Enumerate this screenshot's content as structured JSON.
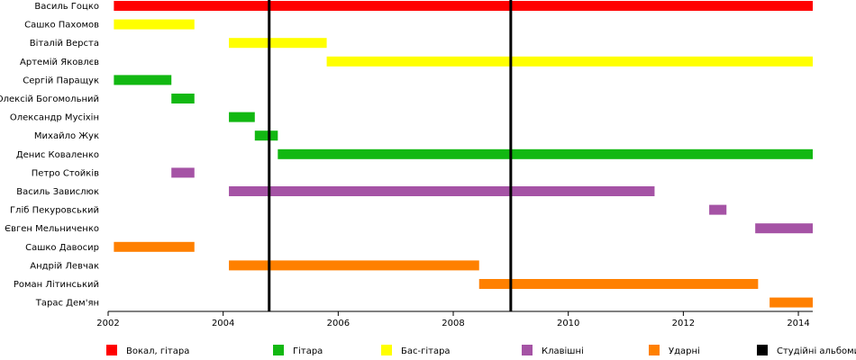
{
  "chart_data": {
    "type": "timeline",
    "title": "",
    "xlabel": "",
    "ylabel": "",
    "xlim": [
      2002.0,
      2014.25
    ],
    "x_ticks": [
      "2002",
      "2004",
      "2006",
      "2008",
      "2010",
      "2012",
      "2014"
    ],
    "x_tick_values": [
      2002,
      2004,
      2006,
      2008,
      2010,
      2012,
      2014
    ],
    "colors": {
      "vocal_guitar": "#ff0000",
      "guitar": "#12b812",
      "bass": "#ffff00",
      "keys": "#a553a5",
      "drums": "#ff8000",
      "album": "#000000"
    },
    "members": [
      {
        "name": "Василь Гоцко",
        "periods": [
          {
            "role": "vocal_guitar",
            "start": 2002.1,
            "end": 2014.25
          }
        ]
      },
      {
        "name": "Сашко Пахомов",
        "periods": [
          {
            "role": "bass",
            "start": 2002.1,
            "end": 2003.5
          }
        ]
      },
      {
        "name": "Віталій Верста",
        "periods": [
          {
            "role": "bass",
            "start": 2004.1,
            "end": 2005.8
          }
        ]
      },
      {
        "name": "Артемій Яковлєв",
        "periods": [
          {
            "role": "bass",
            "start": 2005.8,
            "end": 2014.25
          }
        ]
      },
      {
        "name": "Сергій Паращук",
        "periods": [
          {
            "role": "guitar",
            "start": 2002.1,
            "end": 2003.1
          }
        ]
      },
      {
        "name": "Олексій Богомольний",
        "periods": [
          {
            "role": "guitar",
            "start": 2003.1,
            "end": 2003.5
          }
        ]
      },
      {
        "name": "Олександр Мусіхін",
        "periods": [
          {
            "role": "guitar",
            "start": 2004.1,
            "end": 2004.55
          }
        ]
      },
      {
        "name": "Михайло Жук",
        "periods": [
          {
            "role": "guitar",
            "start": 2004.55,
            "end": 2004.95
          }
        ]
      },
      {
        "name": "Денис Коваленко",
        "periods": [
          {
            "role": "guitar",
            "start": 2004.95,
            "end": 2014.25
          }
        ]
      },
      {
        "name": "Петро Стойків",
        "periods": [
          {
            "role": "keys",
            "start": 2003.1,
            "end": 2003.5
          }
        ]
      },
      {
        "name": "Василь Завислюк",
        "periods": [
          {
            "role": "keys",
            "start": 2004.1,
            "end": 2011.5
          }
        ]
      },
      {
        "name": "Гліб Пекуровський",
        "periods": [
          {
            "role": "keys",
            "start": 2012.45,
            "end": 2012.75
          }
        ]
      },
      {
        "name": "Євген Мельниченко",
        "periods": [
          {
            "role": "keys",
            "start": 2013.25,
            "end": 2014.25
          }
        ]
      },
      {
        "name": "Сашко Давосир",
        "periods": [
          {
            "role": "drums",
            "start": 2002.1,
            "end": 2003.5
          }
        ]
      },
      {
        "name": "Андрій Левчак",
        "periods": [
          {
            "role": "drums",
            "start": 2004.1,
            "end": 2008.45
          }
        ]
      },
      {
        "name": "Роман Літинський",
        "periods": [
          {
            "role": "drums",
            "start": 2008.45,
            "end": 2013.3
          }
        ]
      },
      {
        "name": "Тарас Дем'ян",
        "periods": [
          {
            "role": "drums",
            "start": 2013.5,
            "end": 2014.25
          }
        ]
      }
    ],
    "albums": [
      2004.8,
      2009.0
    ],
    "legend": [
      {
        "role": "vocal_guitar",
        "label": "Вокал, гітара"
      },
      {
        "role": "guitar",
        "label": "Гітара"
      },
      {
        "role": "bass",
        "label": "Бас-гітара"
      },
      {
        "role": "keys",
        "label": "Клавішні"
      },
      {
        "role": "drums",
        "label": "Ударні"
      },
      {
        "role": "album",
        "label": "Студійні альбоми"
      }
    ],
    "legend_position": "bottom",
    "grid": false
  }
}
